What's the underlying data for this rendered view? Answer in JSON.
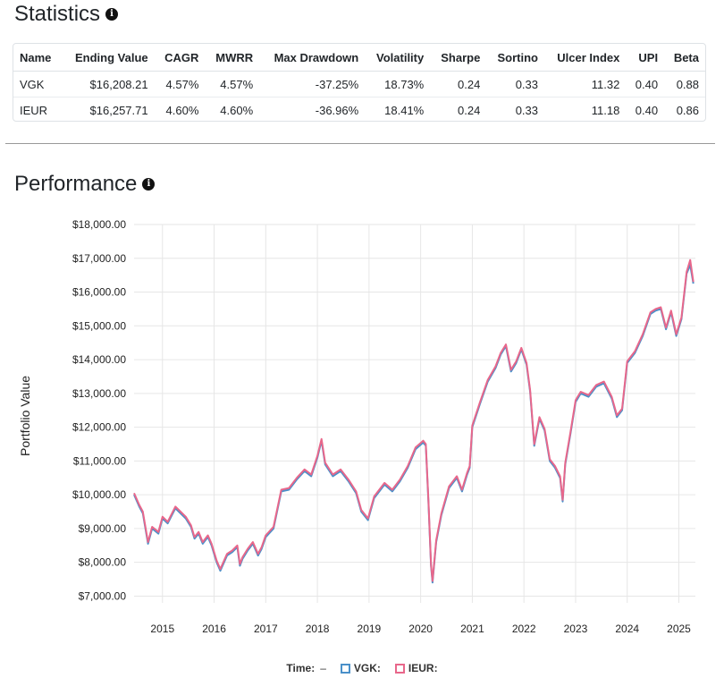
{
  "statistics": {
    "title": "Statistics",
    "info_icon": "info-icon",
    "columns": [
      "Name",
      "Ending Value",
      "CAGR",
      "MWRR",
      "Max Drawdown",
      "Volatility",
      "Sharpe",
      "Sortino",
      "Ulcer Index",
      "UPI",
      "Beta"
    ],
    "rows": [
      [
        "VGK",
        "$16,208.21",
        "4.57%",
        "4.57%",
        "-37.25%",
        "18.73%",
        "0.24",
        "0.33",
        "11.32",
        "0.40",
        "0.88"
      ],
      [
        "IEUR",
        "$16,257.71",
        "4.60%",
        "4.60%",
        "-36.96%",
        "18.41%",
        "0.24",
        "0.33",
        "11.18",
        "0.40",
        "0.86"
      ]
    ]
  },
  "performance": {
    "title": "Performance",
    "info_icon": "info-icon"
  },
  "legend": {
    "time_label": "Time:",
    "time_value": "–",
    "items": [
      {
        "label": "VGK:",
        "color": "#4a90c9"
      },
      {
        "label": "IEUR:",
        "color": "#e8678b"
      }
    ]
  },
  "chart_data": {
    "type": "line",
    "ylabel": "Portfolio Value",
    "ylim": [
      6800,
      18000
    ],
    "yticks": [
      "$7,000.00",
      "$8,000.00",
      "$9,000.00",
      "$10,000.00",
      "$11,000.00",
      "$12,000.00",
      "$13,000.00",
      "$14,000.00",
      "$15,000.00",
      "$16,000.00",
      "$17,000.00",
      "$18,000.00"
    ],
    "ytick_values": [
      7000,
      8000,
      9000,
      10000,
      11000,
      12000,
      13000,
      14000,
      15000,
      16000,
      17000,
      18000
    ],
    "xlim": [
      2014.45,
      2025.32
    ],
    "xticks": [
      "2015",
      "2016",
      "2017",
      "2018",
      "2019",
      "2020",
      "2021",
      "2022",
      "2023",
      "2024",
      "2025"
    ],
    "xtick_values": [
      2015,
      2016,
      2017,
      2018,
      2019,
      2020,
      2021,
      2022,
      2023,
      2024,
      2025
    ],
    "grid": true,
    "series": [
      {
        "name": "VGK",
        "color": "#4a90c9",
        "x": [
          2014.45,
          2014.55,
          2014.62,
          2014.72,
          2014.8,
          2014.92,
          2015.0,
          2015.1,
          2015.25,
          2015.35,
          2015.45,
          2015.55,
          2015.62,
          2015.7,
          2015.78,
          2015.88,
          2015.95,
          2016.05,
          2016.12,
          2016.25,
          2016.35,
          2016.45,
          2016.5,
          2016.55,
          2016.65,
          2016.75,
          2016.85,
          2016.92,
          2017.0,
          2017.15,
          2017.3,
          2017.45,
          2017.6,
          2017.75,
          2017.88,
          2018.0,
          2018.08,
          2018.15,
          2018.3,
          2018.45,
          2018.6,
          2018.75,
          2018.85,
          2018.98,
          2019.1,
          2019.3,
          2019.45,
          2019.6,
          2019.75,
          2019.9,
          2020.05,
          2020.1,
          2020.15,
          2020.2,
          2020.23,
          2020.3,
          2020.4,
          2020.55,
          2020.7,
          2020.8,
          2020.9,
          2020.95,
          2021.0,
          2021.15,
          2021.3,
          2021.45,
          2021.55,
          2021.65,
          2021.75,
          2021.85,
          2021.95,
          2022.05,
          2022.12,
          2022.2,
          2022.3,
          2022.4,
          2022.5,
          2022.6,
          2022.7,
          2022.75,
          2022.8,
          2022.9,
          2023.0,
          2023.1,
          2023.25,
          2023.4,
          2023.55,
          2023.7,
          2023.8,
          2023.9,
          2024.0,
          2024.15,
          2024.3,
          2024.45,
          2024.55,
          2024.65,
          2024.75,
          2024.85,
          2024.95,
          2025.05,
          2025.15,
          2025.22,
          2025.28
        ],
        "y": [
          10000,
          9650,
          9450,
          8550,
          9000,
          8850,
          9300,
          9150,
          9600,
          9450,
          9300,
          9050,
          8700,
          8850,
          8550,
          8750,
          8500,
          8000,
          7750,
          8200,
          8300,
          8450,
          7900,
          8100,
          8350,
          8550,
          8200,
          8400,
          8750,
          9000,
          10100,
          10150,
          10450,
          10700,
          10550,
          11100,
          11600,
          10900,
          10550,
          10700,
          10400,
          10050,
          9500,
          9250,
          9900,
          10300,
          10100,
          10400,
          10800,
          11350,
          11550,
          11450,
          9800,
          7900,
          7400,
          8600,
          9400,
          10200,
          10500,
          10100,
          10600,
          10800,
          12000,
          12700,
          13350,
          13750,
          14150,
          14400,
          13650,
          13900,
          14300,
          13850,
          13050,
          11450,
          12250,
          11900,
          11000,
          10800,
          10500,
          9800,
          10900,
          11800,
          12750,
          13000,
          12900,
          13200,
          13300,
          12850,
          12300,
          12500,
          13900,
          14200,
          14700,
          15350,
          15450,
          15500,
          14900,
          15400,
          14700,
          15200,
          16550,
          16800,
          16250
        ]
      },
      {
        "name": "IEUR",
        "color": "#e8678b",
        "x": [
          2014.45,
          2014.55,
          2014.62,
          2014.72,
          2014.8,
          2014.92,
          2015.0,
          2015.1,
          2015.25,
          2015.35,
          2015.45,
          2015.55,
          2015.62,
          2015.7,
          2015.78,
          2015.88,
          2015.95,
          2016.05,
          2016.12,
          2016.25,
          2016.35,
          2016.45,
          2016.5,
          2016.55,
          2016.65,
          2016.75,
          2016.85,
          2016.92,
          2017.0,
          2017.15,
          2017.3,
          2017.45,
          2017.6,
          2017.75,
          2017.88,
          2018.0,
          2018.08,
          2018.15,
          2018.3,
          2018.45,
          2018.6,
          2018.75,
          2018.85,
          2018.98,
          2019.1,
          2019.3,
          2019.45,
          2019.6,
          2019.75,
          2019.9,
          2020.05,
          2020.1,
          2020.15,
          2020.2,
          2020.23,
          2020.3,
          2020.4,
          2020.55,
          2020.7,
          2020.8,
          2020.9,
          2020.95,
          2021.0,
          2021.15,
          2021.3,
          2021.45,
          2021.55,
          2021.65,
          2021.75,
          2021.85,
          2021.95,
          2022.05,
          2022.12,
          2022.2,
          2022.3,
          2022.4,
          2022.5,
          2022.6,
          2022.7,
          2022.75,
          2022.8,
          2022.9,
          2023.0,
          2023.1,
          2023.25,
          2023.4,
          2023.55,
          2023.7,
          2023.8,
          2023.9,
          2024.0,
          2024.15,
          2024.3,
          2024.45,
          2024.55,
          2024.65,
          2024.75,
          2024.85,
          2024.95,
          2025.05,
          2025.15,
          2025.22,
          2025.28
        ],
        "y": [
          10050,
          9700,
          9500,
          8600,
          9050,
          8900,
          9350,
          9200,
          9650,
          9500,
          9350,
          9100,
          8750,
          8900,
          8600,
          8800,
          8550,
          8050,
          7800,
          8250,
          8350,
          8500,
          7950,
          8150,
          8400,
          8600,
          8250,
          8450,
          8800,
          9050,
          10150,
          10200,
          10500,
          10750,
          10600,
          11150,
          11650,
          10950,
          10600,
          10750,
          10450,
          10100,
          9550,
          9300,
          9950,
          10350,
          10150,
          10450,
          10850,
          11400,
          11600,
          11500,
          9850,
          7950,
          7450,
          8650,
          9450,
          10250,
          10550,
          10150,
          10650,
          10850,
          12050,
          12750,
          13400,
          13800,
          14200,
          14450,
          13700,
          13950,
          14350,
          13900,
          13100,
          11500,
          12300,
          11950,
          11050,
          10850,
          10550,
          9850,
          10950,
          11850,
          12800,
          13050,
          12950,
          13250,
          13350,
          12900,
          12350,
          12550,
          13950,
          14250,
          14750,
          15400,
          15500,
          15550,
          14950,
          15450,
          14750,
          15250,
          16600,
          16950,
          16300
        ]
      }
    ]
  }
}
